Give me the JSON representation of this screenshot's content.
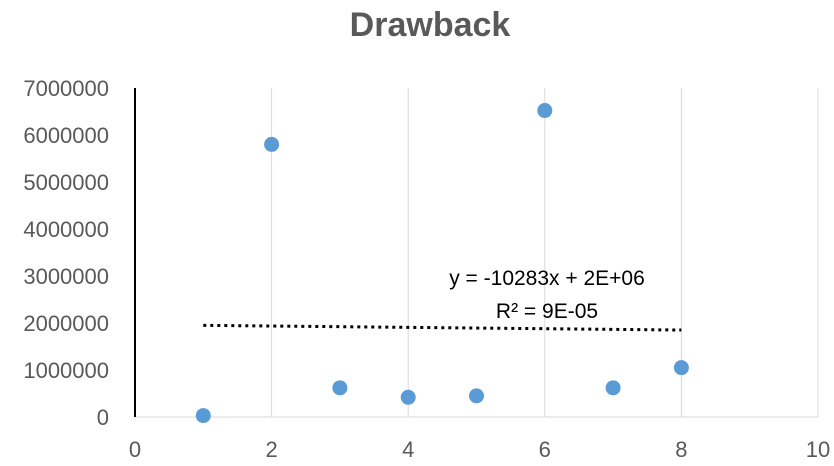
{
  "chart_data": {
    "type": "scatter",
    "title": "Drawback",
    "xlabel": "",
    "ylabel": "",
    "xlim": [
      0,
      10
    ],
    "ylim": [
      0,
      7000000
    ],
    "x_ticks": [
      "0",
      "2",
      "4",
      "6",
      "8",
      "10"
    ],
    "y_ticks": [
      "0",
      "1000000",
      "2000000",
      "3000000",
      "4000000",
      "5000000",
      "6000000",
      "7000000"
    ],
    "grid": "vertical",
    "legend": "none",
    "series": [
      {
        "color": "#5b9bd5",
        "points": [
          {
            "x": 1,
            "y": 30000
          },
          {
            "x": 2,
            "y": 5800000
          },
          {
            "x": 3,
            "y": 620000
          },
          {
            "x": 4,
            "y": 420000
          },
          {
            "x": 5,
            "y": 450000
          },
          {
            "x": 6,
            "y": 6520000
          },
          {
            "x": 7,
            "y": 620000
          },
          {
            "x": 8,
            "y": 1050000
          }
        ]
      }
    ],
    "trendline": {
      "type": "linear",
      "x_range": [
        1,
        8
      ],
      "y_start": 1950000,
      "y_end": 1850000,
      "style": "dotted",
      "color": "#000000",
      "equation": "y = -10283x + 2E+06",
      "r_squared": "R² = 9E-05"
    }
  }
}
